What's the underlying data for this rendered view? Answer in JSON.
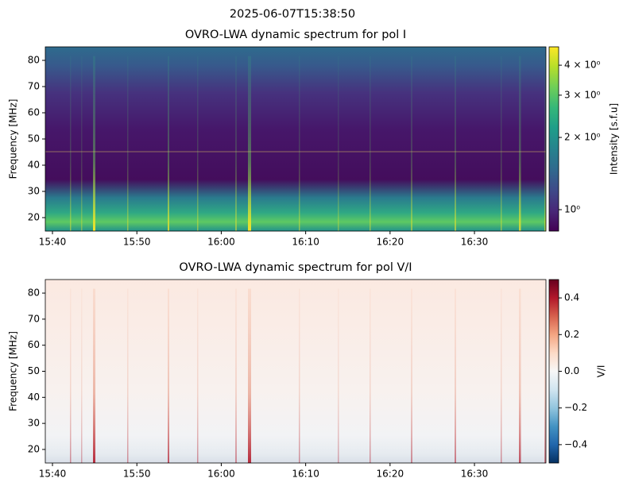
{
  "suptitle": "2025-06-07T15:38:50",
  "chart_data": [
    {
      "type": "heatmap",
      "title": "OVRO-LWA dynamic spectrum for pol I",
      "ylabel": "Frequency [MHz]",
      "colorbar_label": "Intensity [s.f.u]",
      "colormap": "viridis",
      "colorbar_log": true,
      "xlim": [
        939.15,
        998.47
      ],
      "xticks": [
        {
          "value": 940,
          "label": "15:40"
        },
        {
          "value": 950,
          "label": "15:50"
        },
        {
          "value": 960,
          "label": "16:00"
        },
        {
          "value": 970,
          "label": "16:10"
        },
        {
          "value": 980,
          "label": "16:20"
        },
        {
          "value": 990,
          "label": "16:30"
        }
      ],
      "ylim": [
        14.85,
        85.15
      ],
      "yticks": [
        20,
        30,
        40,
        50,
        60,
        70,
        80
      ],
      "clim": [
        0.814,
        4.77
      ],
      "cticks": [
        {
          "value": 1,
          "label": "10⁰"
        },
        {
          "value": 2,
          "label": "2 × 10⁰"
        },
        {
          "value": 3,
          "label": "3 × 10⁰"
        },
        {
          "value": 4,
          "label": "4 × 10⁰"
        }
      ]
    },
    {
      "type": "heatmap",
      "title": "OVRO-LWA dynamic spectrum for pol V/I",
      "ylabel": "Frequency [MHz]",
      "colorbar_label": "V/I",
      "colormap": "RdBu_r",
      "colorbar_log": false,
      "xlim": [
        939.15,
        998.47
      ],
      "xticks": [
        {
          "value": 940,
          "label": "15:40"
        },
        {
          "value": 950,
          "label": "15:50"
        },
        {
          "value": 960,
          "label": "16:00"
        },
        {
          "value": 970,
          "label": "16:10"
        },
        {
          "value": 980,
          "label": "16:20"
        },
        {
          "value": 990,
          "label": "16:30"
        }
      ],
      "ylim": [
        14.8,
        85.2
      ],
      "yticks": [
        20,
        30,
        40,
        50,
        60,
        70,
        80
      ],
      "clim": [
        -0.5,
        0.5
      ],
      "cticks": [
        {
          "value": 0.4,
          "label": "0.4"
        },
        0.2,
        {
          "value": 0.0,
          "label": "0.0"
        },
        {
          "value": -0.2,
          "label": "−0.2"
        },
        {
          "value": -0.4,
          "label": "−0.4"
        }
      ]
    }
  ]
}
